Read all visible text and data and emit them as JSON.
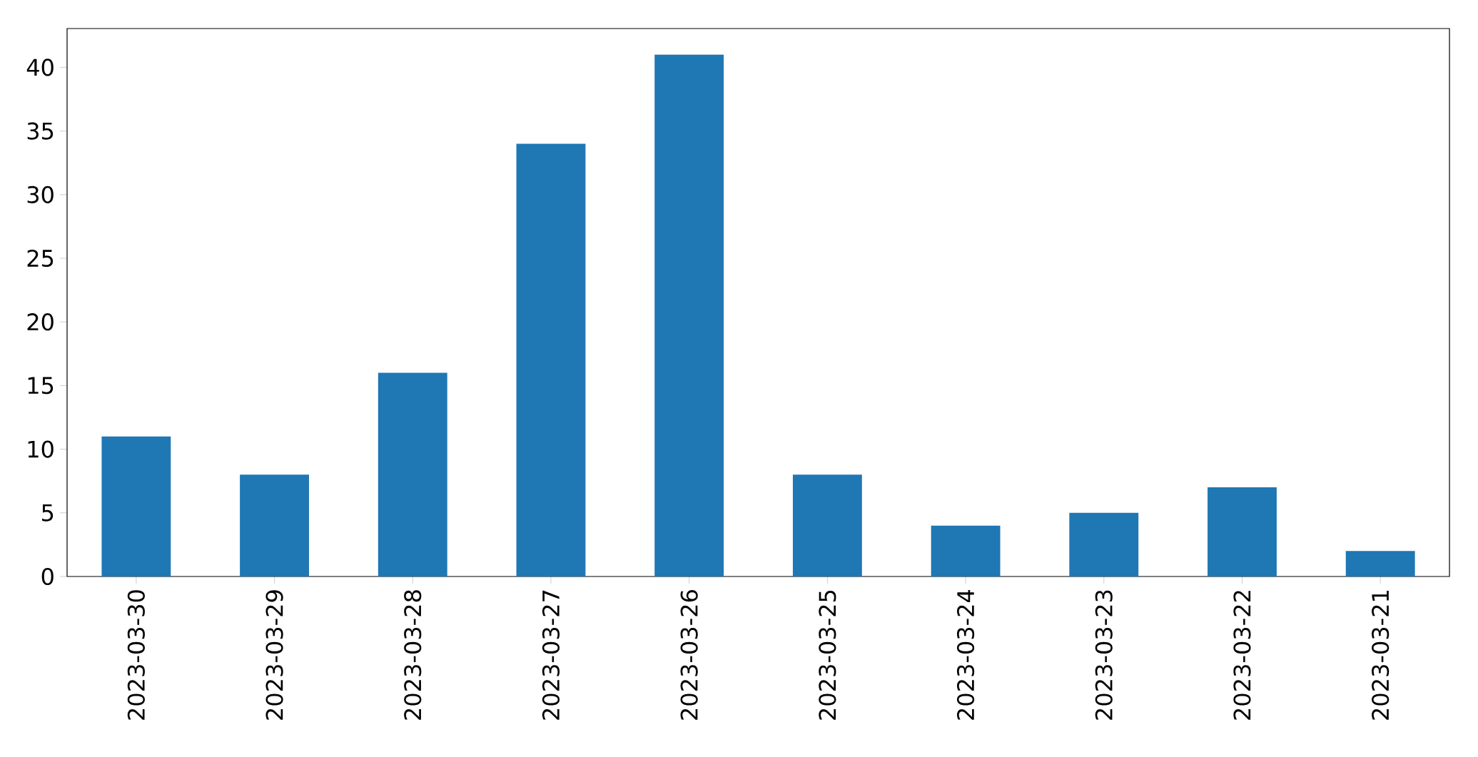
{
  "chart_data": {
    "type": "bar",
    "categories": [
      "2023-03-30",
      "2023-03-29",
      "2023-03-28",
      "2023-03-27",
      "2023-03-26",
      "2023-03-25",
      "2023-03-24",
      "2023-03-23",
      "2023-03-22",
      "2023-03-21"
    ],
    "values": [
      11,
      8,
      16,
      34,
      41,
      8,
      4,
      5,
      7,
      2
    ],
    "color": "#1f77b4",
    "ylim": [
      0,
      43.05
    ],
    "yticks": [
      0,
      5,
      10,
      15,
      20,
      25,
      30,
      35,
      40
    ]
  }
}
